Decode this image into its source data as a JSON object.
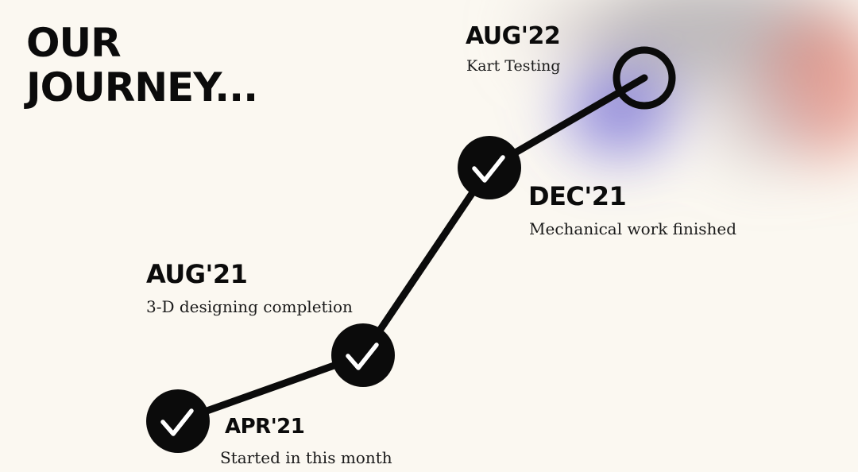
{
  "title": {
    "line1": "OUR",
    "line2": "JOURNEY..."
  },
  "milestones": [
    {
      "date": "APR'21",
      "description": "Started in this month",
      "status": "completed",
      "icon": "checkmark-icon"
    },
    {
      "date": "AUG'21",
      "description": "3-D designing completion",
      "status": "completed",
      "icon": "checkmark-icon"
    },
    {
      "date": "DEC'21",
      "description": "Mechanical work finished",
      "status": "completed",
      "icon": "checkmark-icon"
    },
    {
      "date": "AUG'22",
      "description": "Kart Testing",
      "status": "upcoming",
      "icon": "empty-circle-icon"
    }
  ],
  "colors": {
    "background": "#fbf8f1",
    "ink": "#0b0b0b",
    "accent_purple": "#6b63d6",
    "accent_red": "#e07a6a"
  }
}
